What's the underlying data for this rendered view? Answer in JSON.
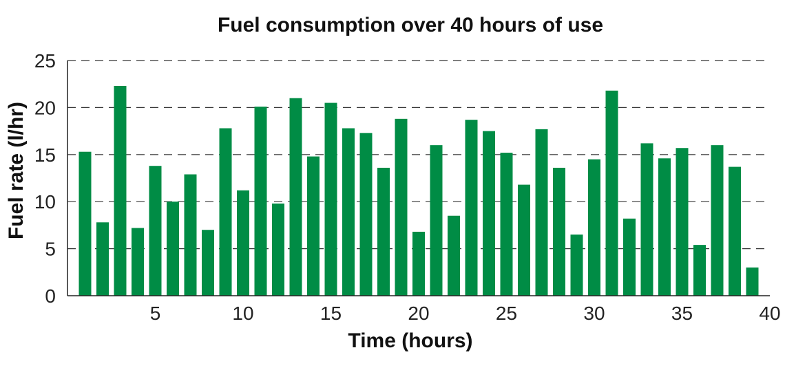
{
  "chart_data": {
    "type": "bar",
    "title": "Fuel consumption over 40 hours of use",
    "xlabel": "Time (hours)",
    "ylabel": "Fuel rate (l/hr)",
    "x": [
      1,
      2,
      3,
      4,
      5,
      6,
      7,
      8,
      9,
      10,
      11,
      12,
      13,
      14,
      15,
      16,
      17,
      18,
      19,
      20,
      21,
      22,
      23,
      24,
      25,
      26,
      27,
      28,
      29,
      30,
      31,
      32,
      33,
      34,
      35,
      36,
      37,
      38,
      39
    ],
    "values": [
      15.3,
      7.8,
      22.3,
      7.2,
      13.8,
      10.0,
      12.9,
      7.0,
      17.8,
      11.2,
      20.1,
      9.8,
      21.0,
      14.8,
      20.5,
      17.8,
      17.3,
      13.6,
      18.8,
      6.8,
      16.0,
      8.5,
      18.7,
      17.5,
      15.2,
      11.8,
      17.7,
      13.6,
      6.5,
      14.5,
      21.8,
      8.2,
      16.2,
      14.6,
      15.7,
      5.4,
      16.0,
      13.7,
      3.0
    ],
    "xlim": [
      0,
      40
    ],
    "ylim": [
      0,
      25
    ],
    "xticks": [
      5,
      10,
      15,
      20,
      25,
      30,
      35,
      40
    ],
    "yticks": [
      0,
      5,
      10,
      15,
      20,
      25
    ],
    "grid": "horizontal dashed",
    "bar_color": "#008c45"
  }
}
